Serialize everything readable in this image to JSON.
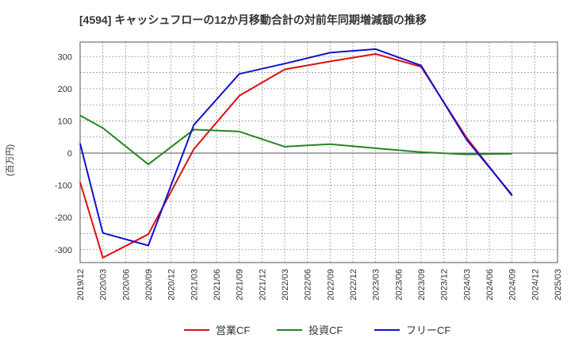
{
  "chart_data": {
    "type": "line",
    "title": "[4594]  キャッシュフローの12か月移動合計の対前年同期増減額の推移",
    "ylabel": "(百万円)",
    "xlabel": "",
    "ylim": [
      -340,
      345
    ],
    "yticks": [
      -300,
      -200,
      -100,
      0,
      100,
      200,
      300
    ],
    "grid": true,
    "legend_position": "bottom-center",
    "categories": [
      "2019/12",
      "2020/03",
      "2020/06",
      "2020/09",
      "2020/12",
      "2021/03",
      "2021/06",
      "2021/09",
      "2021/12",
      "2022/03",
      "2022/06",
      "2022/09",
      "2022/12",
      "2023/03",
      "2023/06",
      "2023/09",
      "2023/12",
      "2024/03",
      "2024/06",
      "2024/09",
      "2024/12",
      "2025/03"
    ],
    "series": [
      {
        "name": "営業CF",
        "color": "#dd1111",
        "values": [
          -90,
          -325,
          null,
          -252,
          null,
          12,
          null,
          178,
          null,
          260,
          null,
          285,
          null,
          308,
          null,
          268,
          null,
          48,
          null,
          -133,
          null,
          null
        ]
      },
      {
        "name": "投資CF",
        "color": "#228822",
        "values": [
          117,
          78,
          null,
          -35,
          null,
          73,
          null,
          67,
          null,
          20,
          null,
          28,
          null,
          15,
          null,
          3,
          null,
          -4,
          null,
          -2,
          null,
          null
        ]
      },
      {
        "name": "フリーCF",
        "color": "#1111cc",
        "values": [
          30,
          -248,
          null,
          -287,
          null,
          87,
          null,
          246,
          null,
          278,
          null,
          312,
          null,
          323,
          null,
          272,
          null,
          42,
          null,
          -130,
          null,
          null
        ]
      }
    ]
  }
}
